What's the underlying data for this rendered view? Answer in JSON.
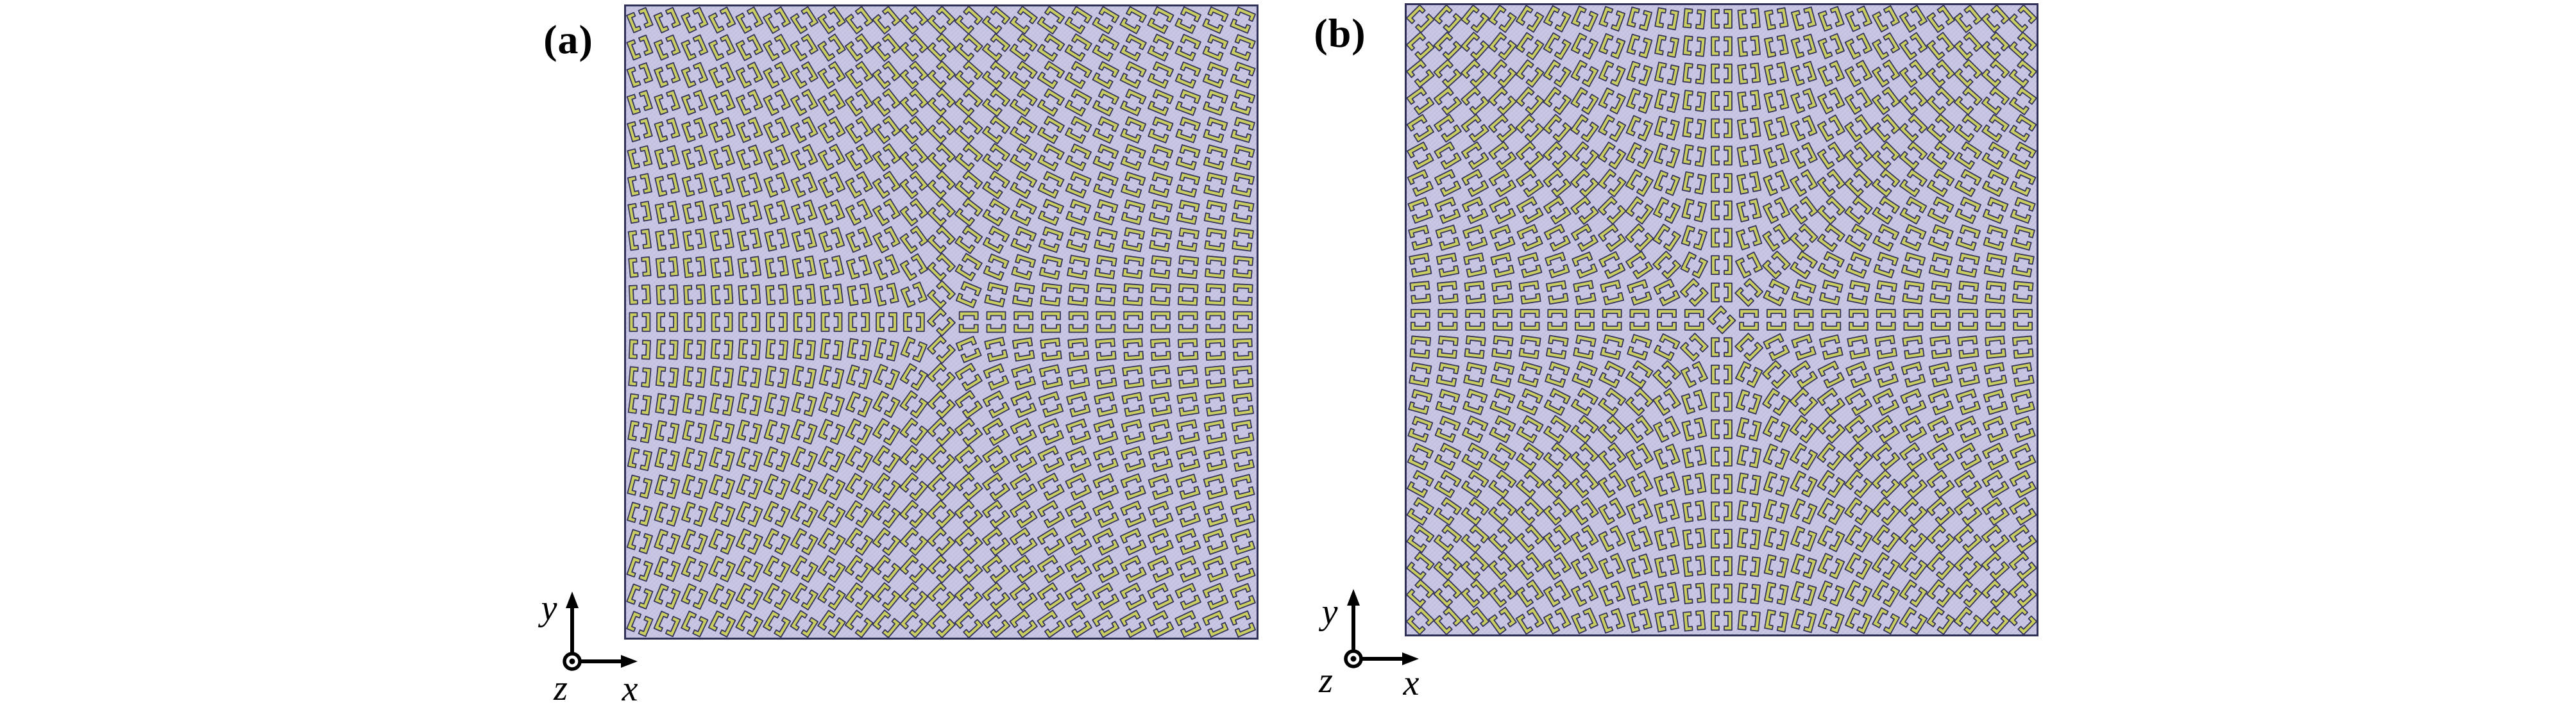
{
  "figure": {
    "description": "Top view of two geometric-phase metasurface element layouts: arrays of bracket-pair split-ring cells whose in-plane rotation angle varies with azimuth about the panel center.",
    "panels": [
      {
        "label": "(a)",
        "grid": {
          "rows": 23,
          "cols": 23
        },
        "rotation_rule": {
          "formula_deg": "theta = 90 - q * phi",
          "q": 0.5,
          "phi_definition": "azimuth angle (deg, CCW from +x) of the cell measured from the panel center",
          "theta_definition": "CCW in-plane rotation of the bracket-pair cell, mod 180"
        }
      },
      {
        "label": "(b)",
        "grid": {
          "rows": 23,
          "cols": 23
        },
        "rotation_rule": {
          "formula_deg": "theta = 90 - q * phi",
          "q": 1,
          "phi_definition": "azimuth angle (deg, CCW from +x) of the cell measured from the panel center",
          "theta_definition": "CCW in-plane rotation of the bracket-pair cell, mod 180"
        }
      }
    ],
    "unit_cell": {
      "shape": "two facing square brackets forming a split square ring with gaps centered on top and bottom edges",
      "outer_width": 32,
      "outer_height": 29,
      "arm_length": 12,
      "bar_thickness": 6,
      "gap_width": 8
    },
    "axis_labels": {
      "x": "x",
      "y": "y",
      "z": "z"
    },
    "colors": {
      "panel_background": "#c7c5e2",
      "cell_fill": "#c9cd62",
      "cell_outline": "#32325a",
      "panel_border": "#2e3058",
      "label_color": "#000000"
    }
  }
}
